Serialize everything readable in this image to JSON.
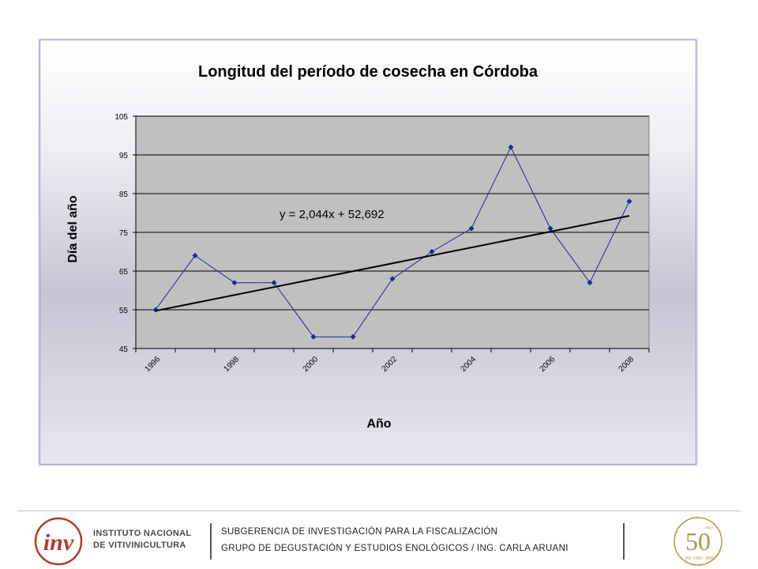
{
  "chart_data": {
    "type": "line",
    "title": "Longitud del período de cosecha en Córdoba",
    "xlabel": "Año",
    "ylabel": "Día del año",
    "x": [
      1996,
      1997,
      1998,
      1999,
      2000,
      2001,
      2002,
      2003,
      2004,
      2005,
      2006,
      2007,
      2008
    ],
    "x_tick_labels": [
      "1996",
      "1998",
      "2000",
      "2002",
      "2004",
      "2006",
      "2008"
    ],
    "series": [
      {
        "values": [
          55,
          69,
          62,
          62,
          48,
          48,
          63,
          70,
          76,
          97,
          76,
          62,
          83
        ],
        "color": "#1f2a8c"
      }
    ],
    "trendline": {
      "equation": "y = 2,044x + 52,692",
      "slope": 2.044,
      "intercept": 52.692,
      "color": "#000000"
    },
    "y_ticks": [
      45,
      55,
      65,
      75,
      85,
      95,
      105
    ],
    "ylim": [
      45,
      105
    ],
    "grid": true,
    "plot_background": "#c0c0c0"
  },
  "footer": {
    "org_line1": "INSTITUTO NACIONAL",
    "org_line2": "DE VITIVINICULTURA",
    "line1": "SUBGERENCIA DE INVESTIGACIÓN PARA LA FISCALIZACIÓN",
    "line2": "GRUPO DE DEGUSTACIÓN Y ESTUDIOS ENOLÓGICOS / ING. CARLA ARUANI",
    "logo_left_text": "inv",
    "logo_right_number": "50",
    "logo_right_small": "AÑOS",
    "logo_right_years": "INV 1959 - 2009"
  },
  "colors": {
    "brand_red": "#b23a2a",
    "gold": "#b8934a"
  }
}
